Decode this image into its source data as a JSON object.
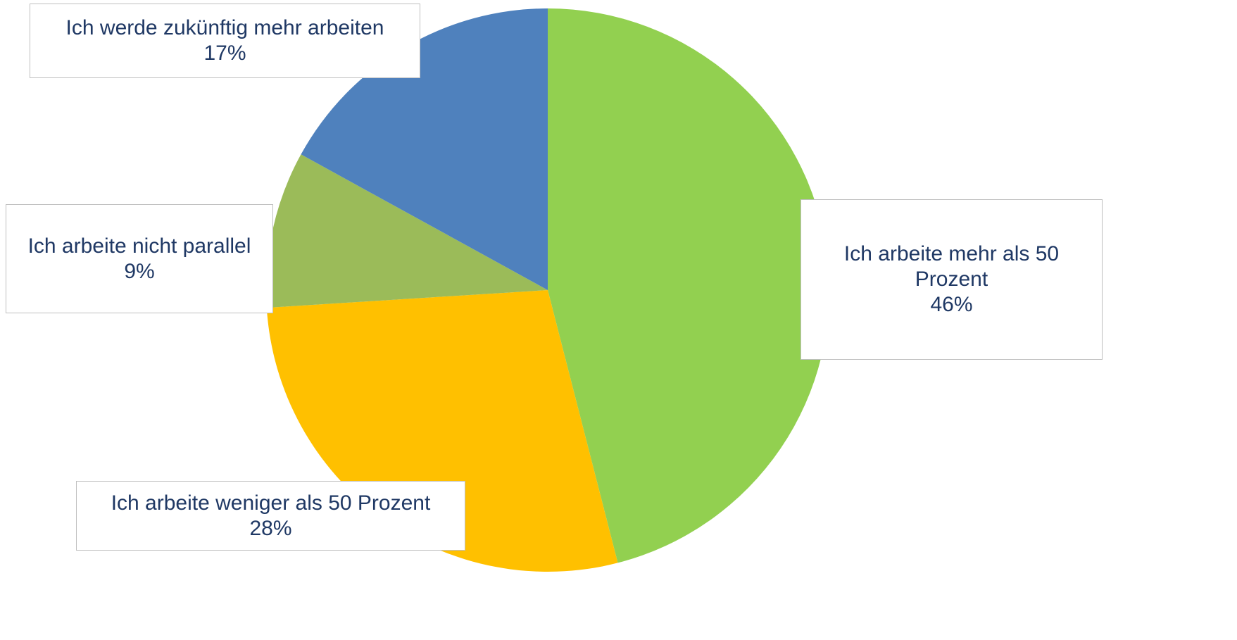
{
  "chart_data": {
    "type": "pie",
    "categories": [
      "Ich arbeite mehr als 50 Prozent",
      "Ich arbeite weniger als 50 Prozent",
      "Ich arbeite nicht parallel",
      "Ich werde zukünftig mehr arbeiten"
    ],
    "values": [
      46,
      28,
      9,
      17
    ],
    "value_labels": [
      "46%",
      "28%",
      "9%",
      "17%"
    ],
    "colors": [
      "#92d050",
      "#ffc000",
      "#9bbb59",
      "#4f81bd"
    ]
  }
}
